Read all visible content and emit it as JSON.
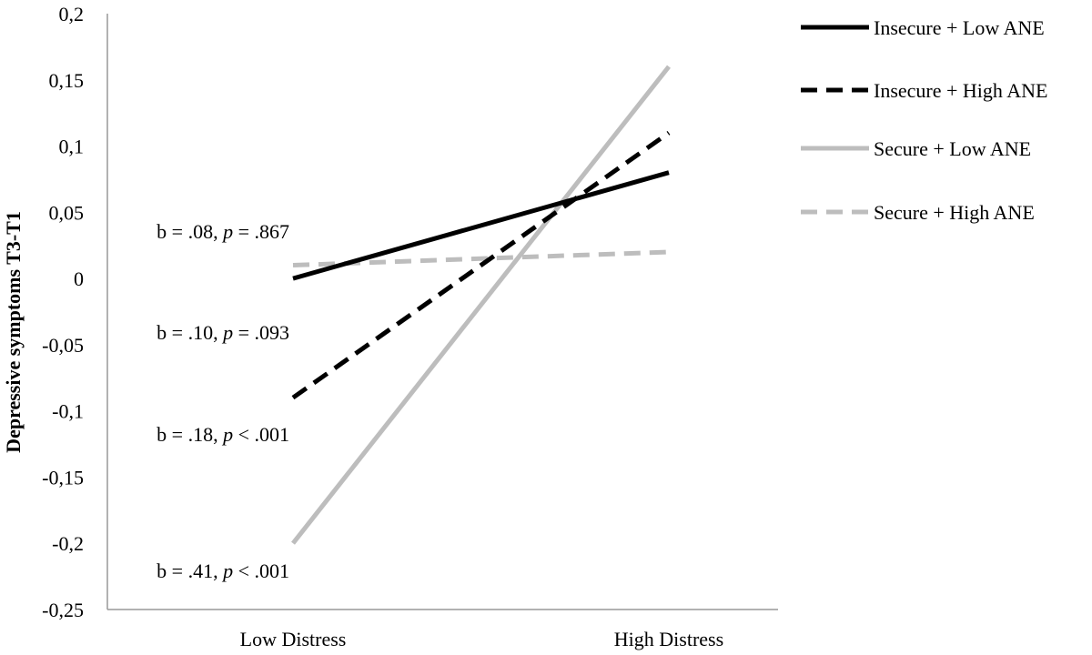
{
  "chart_data": {
    "type": "line",
    "title": "",
    "xlabel": "",
    "ylabel": "Depressive symptoms T3-T1",
    "categories": [
      "Low Distress",
      "High Distress"
    ],
    "ylim": [
      -0.25,
      0.2
    ],
    "yticks": [
      0.2,
      0.15,
      0.1,
      0.05,
      0,
      -0.05,
      -0.1,
      -0.15,
      -0.2,
      -0.25
    ],
    "ytick_labels": [
      "0,2",
      "0,15",
      "0,1",
      "0,05",
      "0",
      "-0,05",
      "-0,1",
      "-0,15",
      "-0,2",
      "-0,25"
    ],
    "grid": false,
    "legend_position": "top-right",
    "series": [
      {
        "name": "Insecure + Low ANE",
        "values": [
          0.0,
          0.08
        ],
        "color": "#000000",
        "dash": "solid"
      },
      {
        "name": "Insecure + High ANE",
        "values": [
          -0.09,
          0.11
        ],
        "color": "#000000",
        "dash": "dashed"
      },
      {
        "name": "Secure + Low ANE",
        "values": [
          -0.2,
          0.16
        ],
        "color": "#bdbdbd",
        "dash": "solid"
      },
      {
        "name": "Secure + High ANE",
        "values": [
          0.01,
          0.02
        ],
        "color": "#bdbdbd",
        "dash": "dashed"
      }
    ],
    "annotations": [
      {
        "b": "b = .08, ",
        "p": "p",
        "rest": " = .867"
      },
      {
        "b": "b = .10, ",
        "p": "p",
        "rest": " = .093"
      },
      {
        "b": "b = .18, ",
        "p": "p",
        "rest": " < .001"
      },
      {
        "b": "b = .41, ",
        "p": "p",
        "rest": " < .001"
      }
    ]
  }
}
